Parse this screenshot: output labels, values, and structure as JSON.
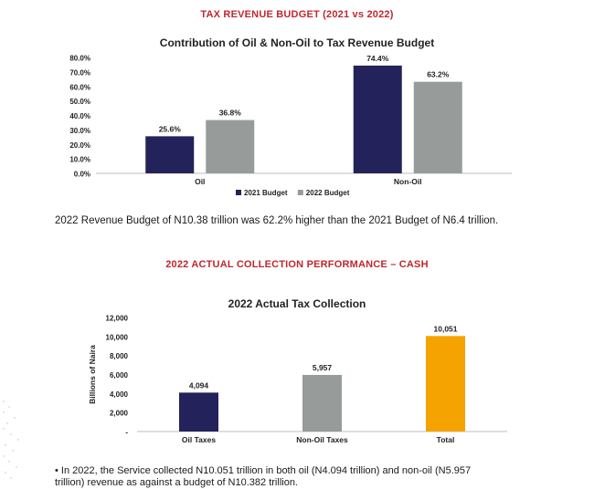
{
  "heading1": "TAX REVENUE BUDGET (2021 vs 2022)",
  "heading2": "2022 ACTUAL COLLECTION PERFORMANCE – CASH",
  "note1": "2022 Revenue Budget of N10.38 trillion was 62.2% higher than the 2021 Budget of N6.4 trillion.",
  "note2": "• In 2022, the Service collected N10.051 trillion in both oil (N4.094 trillion) and non-oil (N5.957 trillion) revenue as against a budget of N10.382 trillion.",
  "colors": {
    "heading": "#c0272d",
    "navy": "#24225a",
    "gray": "#979c9b",
    "orange": "#f5a300"
  },
  "chart_data": [
    {
      "type": "bar",
      "title": "Contribution of Oil & Non-Oil to Tax Revenue Budget",
      "categories": [
        "Oil",
        "Non-Oil"
      ],
      "series": [
        {
          "name": "2021 Budget",
          "values": [
            25.6,
            74.4
          ],
          "labels": [
            "25.6%",
            "74.4%"
          ],
          "color": "#24225a"
        },
        {
          "name": "2022 Budget",
          "values": [
            36.8,
            63.2
          ],
          "labels": [
            "36.8%",
            "63.2%"
          ],
          "color": "#979c9b"
        }
      ],
      "ylim": [
        0,
        80
      ],
      "yticks": [
        "0.0%",
        "10.0%",
        "20.0%",
        "30.0%",
        "40.0%",
        "50.0%",
        "60.0%",
        "70.0%",
        "80.0%"
      ],
      "legend": "bottom",
      "grid": false
    },
    {
      "type": "bar",
      "title": "2022 Actual Tax Collection",
      "ylabel": "Billions of Naira",
      "categories": [
        "Oil Taxes",
        "Non-Oil Taxes",
        "Total"
      ],
      "values": [
        4094,
        5957,
        10051
      ],
      "labels": [
        "4,094",
        "5,957",
        "10,051"
      ],
      "colors": [
        "#24225a",
        "#979c9b",
        "#f5a300"
      ],
      "ylim": [
        0,
        12000
      ],
      "yticks": [
        "-",
        "2,000",
        "4,000",
        "6,000",
        "8,000",
        "10,000",
        "12,000"
      ],
      "grid": false
    }
  ]
}
